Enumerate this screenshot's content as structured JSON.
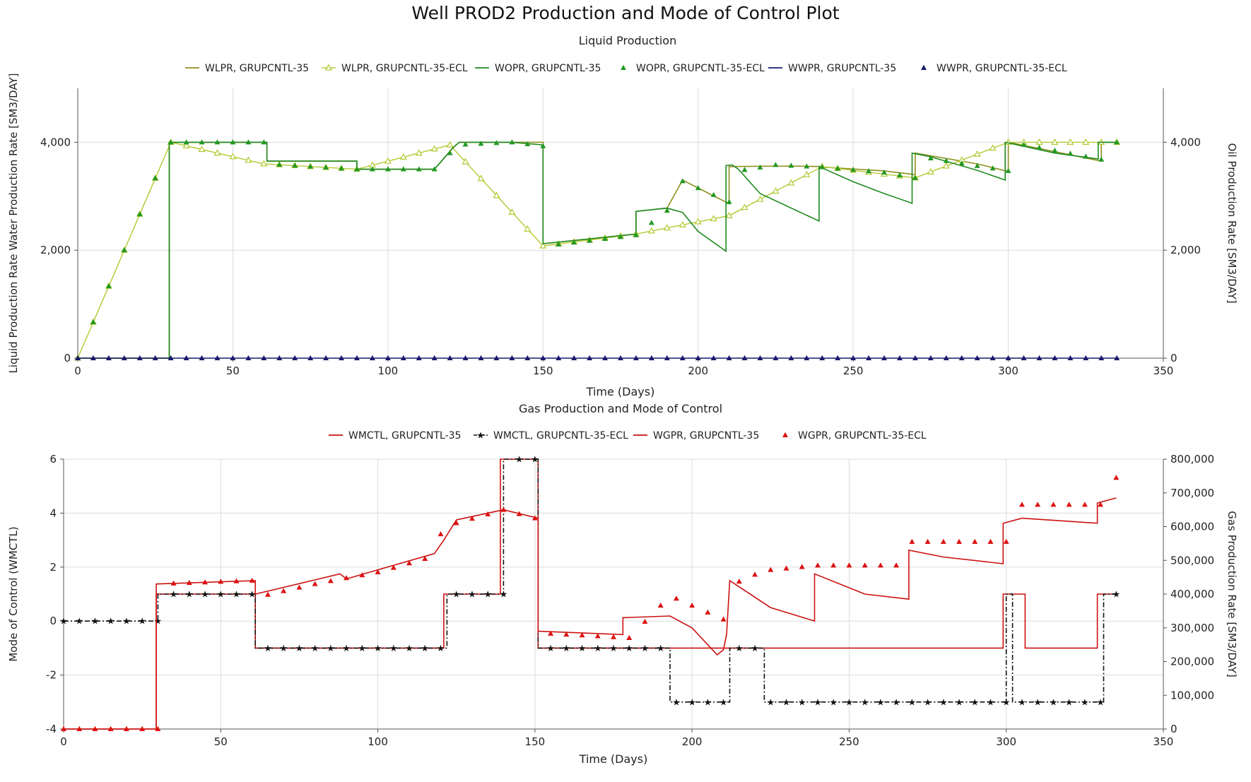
{
  "title": "Well PROD2 Production and Mode of Control Plot",
  "chart_data": [
    {
      "type": "line",
      "subtitle": "Liquid Production",
      "xlabel": "Time (Days)",
      "ylabel_left": "Liquid Production Rate Water Production Rate [SM3/DAY]",
      "ylabel_right": "Oil Production Rate [SM3/DAY]",
      "xlim": [
        0,
        350
      ],
      "ylim_left": [
        0,
        5000
      ],
      "ylim_right": [
        0,
        5000
      ],
      "xticks": [
        "0",
        "50",
        "100",
        "150",
        "200",
        "250",
        "300",
        "350"
      ],
      "yticks_left": [
        "0",
        "2,000",
        "4,000"
      ],
      "yticks_right": [
        "0",
        "2,000",
        "4,000"
      ],
      "grid": true,
      "legend_position": "top",
      "series": [
        {
          "name": "WLPR, GRUPCNTL-35",
          "color": "#8f8f1f",
          "style": "line",
          "x": [
            0,
            29.5,
            29.5,
            61,
            61,
            90,
            90,
            115,
            118,
            121,
            123,
            150,
            150,
            180,
            180,
            190,
            195,
            210,
            210,
            230,
            240,
            240,
            260,
            270,
            270,
            290,
            300,
            300,
            330,
            330,
            335
          ],
          "y": [
            0,
            0,
            4000,
            4000,
            3650,
            3650,
            3500,
            3500,
            3700,
            3900,
            4000,
            4000,
            2120,
            2300,
            2720,
            2780,
            3300,
            2860,
            3550,
            3560,
            3550,
            3540,
            3470,
            3400,
            3800,
            3600,
            3460,
            4000,
            3650,
            4000,
            4000
          ]
        },
        {
          "name": "WLPR, GRUPCNTL-35-ECL",
          "color": "#b5c830",
          "style": "hollow-triangle",
          "x": [
            0,
            30,
            60,
            90,
            120,
            150,
            180,
            210,
            240,
            270,
            300,
            335
          ],
          "y": [
            0,
            4000,
            3600,
            3500,
            3950,
            2080,
            2300,
            2640,
            3550,
            3340,
            4000,
            4000
          ]
        },
        {
          "name": "WOPR, GRUPCNTL-35",
          "color": "#1f8a1f",
          "style": "line",
          "x": [
            0,
            29.5,
            29.5,
            61,
            61,
            90,
            90,
            115,
            118,
            121,
            123,
            140,
            150,
            150,
            180,
            180,
            190,
            195,
            200,
            209,
            209,
            211,
            213,
            220,
            239,
            239,
            250,
            260,
            269,
            269,
            275,
            290,
            299,
            299,
            315,
            329,
            329,
            335
          ],
          "y": [
            0,
            0,
            4000,
            4000,
            3650,
            3650,
            3500,
            3500,
            3700,
            3900,
            4000,
            4000,
            3950,
            2120,
            2300,
            2720,
            2780,
            2700,
            2350,
            1980,
            3570,
            3580,
            3500,
            3050,
            2540,
            3550,
            3270,
            3050,
            2870,
            3800,
            3730,
            3480,
            3300,
            4000,
            3800,
            3690,
            4000,
            4000
          ]
        },
        {
          "name": "WOPR, GRUPCNTL-35-ECL",
          "color": "#229922",
          "style": "filled-triangle",
          "x": [
            0,
            30,
            60,
            61,
            90,
            118,
            121,
            140,
            150,
            151,
            180,
            191,
            192,
            195,
            211,
            212,
            213,
            225,
            240,
            260,
            270,
            271,
            300,
            301,
            330,
            335
          ],
          "y": [
            0,
            4000,
            4000,
            3600,
            3500,
            3500,
            3950,
            4000,
            3930,
            2080,
            2280,
            2780,
            2780,
            3280,
            2870,
            2640,
            3470,
            3580,
            3540,
            3440,
            3340,
            3740,
            3470,
            4000,
            3680,
            4000
          ]
        },
        {
          "name": "WWPR, GRUPCNTL-35",
          "color": "#1a1a6e",
          "style": "line",
          "x": [
            0,
            335
          ],
          "y": [
            0,
            0
          ]
        },
        {
          "name": "WWPR, GRUPCNTL-35-ECL",
          "color": "#1a1a6e",
          "style": "filled-triangle",
          "x": [
            0,
            335
          ],
          "y": [
            0,
            0
          ]
        }
      ]
    },
    {
      "type": "line",
      "subtitle": "Gas Production and Mode of Control",
      "xlabel": "Time (Days)",
      "ylabel_left": "Mode of Control (WMCTL)",
      "ylabel_right": "Gas Production Rate [SM3/DAY]",
      "xlim": [
        0,
        350
      ],
      "ylim_left": [
        -4,
        6
      ],
      "ylim_right": [
        0,
        800000
      ],
      "xticks": [
        "0",
        "50",
        "100",
        "150",
        "200",
        "250",
        "300",
        "350"
      ],
      "yticks_left": [
        "-4",
        "-2",
        "0",
        "2",
        "4",
        "6"
      ],
      "yticks_right": [
        "0",
        "100,000",
        "200,000",
        "300,000",
        "400,000",
        "500,000",
        "600,000",
        "700,000",
        "800,000"
      ],
      "grid": true,
      "legend_position": "top",
      "series": [
        {
          "name": "WMCTL, GRUPCNTL-35",
          "color": "#cc1111",
          "style": "line",
          "axis": "left",
          "x": [
            0,
            29.5,
            29.5,
            61,
            61,
            121,
            121,
            139,
            139,
            151,
            151,
            299,
            299,
            306,
            306,
            329,
            329,
            335
          ],
          "y": [
            -4,
            -4,
            1,
            1,
            -1,
            -1,
            1,
            1,
            6,
            6,
            -1,
            -1,
            1,
            1,
            -1,
            -1,
            1,
            1
          ]
        },
        {
          "name": "WMCTL, GRUPCNTL-35-ECL",
          "color": "#111111",
          "style": "dash-dot-star",
          "axis": "left",
          "x": [
            0,
            30,
            30,
            61,
            61,
            122,
            122,
            140,
            140,
            151,
            151,
            193,
            193,
            212,
            212,
            223,
            223,
            300,
            300,
            302,
            302,
            331,
            331,
            335
          ],
          "y": [
            0,
            0,
            1,
            1,
            -1,
            -1,
            1,
            1,
            6,
            6,
            -1,
            -1,
            -3,
            -3,
            -1,
            -1,
            -3,
            -3,
            1,
            1,
            -3,
            -3,
            1,
            1
          ]
        },
        {
          "name": "WGPR, GRUPCNTL-35",
          "color": "#cc1111",
          "style": "line",
          "axis": "right",
          "x": [
            0,
            29.5,
            29.5,
            61,
            61,
            88,
            90,
            118,
            121,
            125,
            140,
            151,
            151,
            178,
            178,
            193,
            200,
            208,
            210,
            211,
            212,
            225,
            239,
            239,
            255,
            269,
            269,
            280,
            299,
            299,
            305,
            329,
            329,
            335
          ],
          "y": [
            0,
            0,
            430000,
            440000,
            400000,
            460000,
            445000,
            520000,
            560000,
            620000,
            650000,
            625000,
            290000,
            280000,
            330000,
            335000,
            300000,
            220000,
            235000,
            280000,
            440000,
            360000,
            320000,
            460000,
            400000,
            385000,
            530000,
            510000,
            490000,
            610000,
            625000,
            610000,
            670000,
            685000
          ]
        },
        {
          "name": "WGPR, GRUPCNTL-35-ECL",
          "color": "#dd1111",
          "style": "filled-triangle",
          "axis": "right",
          "x": [
            0,
            30,
            30,
            60,
            61,
            80,
            100,
            117,
            121,
            140,
            150,
            151,
            180,
            193,
            210,
            211,
            212,
            223,
            240,
            269,
            270,
            300,
            301,
            330,
            331,
            335
          ],
          "y": [
            0,
            0,
            430000,
            440000,
            390000,
            430000,
            465000,
            510000,
            600000,
            650000,
            625000,
            285000,
            270000,
            395000,
            325000,
            315000,
            425000,
            470000,
            485000,
            485000,
            555000,
            555000,
            665000,
            665000,
            745000,
            745000
          ]
        }
      ]
    }
  ]
}
